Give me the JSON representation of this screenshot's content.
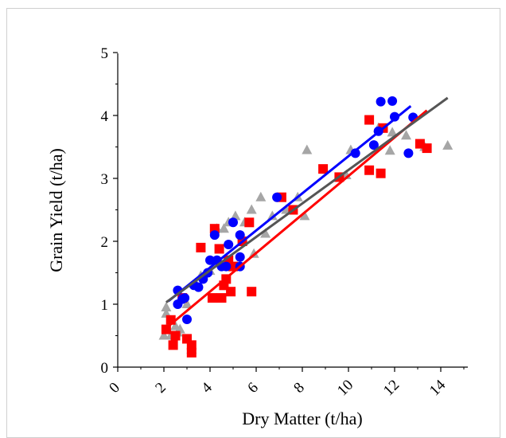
{
  "chart_data": {
    "type": "scatter",
    "title": "",
    "xlabel": "Dry Matter (t/ha)",
    "ylabel": "Grain Yield (t/ha)",
    "xlim": [
      0,
      15
    ],
    "ylim": [
      0,
      5
    ],
    "x_ticks": [
      "0",
      "2",
      "4",
      "6",
      "8",
      "10",
      "12",
      "14"
    ],
    "y_ticks": [
      "0",
      "1",
      "2",
      "3",
      "4",
      "5"
    ],
    "grid": false,
    "legend": "none",
    "series": [
      {
        "color": "#0000ff",
        "marker": "circle",
        "points": [
          [
            2.6,
            1.22
          ],
          [
            2.6,
            1.0
          ],
          [
            2.8,
            1.08
          ],
          [
            2.9,
            1.1
          ],
          [
            3.0,
            0.76
          ],
          [
            3.3,
            1.3
          ],
          [
            3.5,
            1.27
          ],
          [
            3.7,
            1.4
          ],
          [
            3.9,
            1.5
          ],
          [
            4.0,
            1.7
          ],
          [
            4.2,
            2.1
          ],
          [
            4.3,
            1.7
          ],
          [
            4.5,
            1.6
          ],
          [
            4.7,
            1.6
          ],
          [
            4.8,
            1.95
          ],
          [
            5.0,
            2.3
          ],
          [
            5.3,
            2.1
          ],
          [
            5.3,
            1.75
          ],
          [
            5.3,
            1.6
          ],
          [
            6.9,
            2.7
          ],
          [
            10.3,
            3.4
          ],
          [
            11.1,
            3.53
          ],
          [
            11.3,
            3.75
          ],
          [
            11.4,
            4.22
          ],
          [
            11.9,
            4.23
          ],
          [
            12.0,
            3.98
          ],
          [
            12.6,
            3.4
          ],
          [
            12.8,
            3.97
          ]
        ],
        "trend": [
          [
            2.2,
            1.05
          ],
          [
            12.7,
            4.15
          ]
        ]
      },
      {
        "color": "#ff0000",
        "marker": "square",
        "points": [
          [
            2.1,
            0.6
          ],
          [
            2.3,
            0.75
          ],
          [
            2.4,
            0.35
          ],
          [
            2.5,
            0.5
          ],
          [
            2.8,
            1.1
          ],
          [
            3.0,
            0.45
          ],
          [
            3.2,
            0.35
          ],
          [
            3.2,
            0.23
          ],
          [
            3.6,
            1.9
          ],
          [
            4.1,
            1.1
          ],
          [
            4.2,
            2.2
          ],
          [
            4.4,
            1.88
          ],
          [
            4.5,
            1.1
          ],
          [
            4.6,
            1.3
          ],
          [
            4.7,
            1.4
          ],
          [
            4.8,
            1.7
          ],
          [
            4.9,
            1.2
          ],
          [
            5.0,
            1.6
          ],
          [
            5.4,
            2.0
          ],
          [
            5.7,
            2.3
          ],
          [
            5.8,
            1.2
          ],
          [
            7.1,
            2.7
          ],
          [
            7.6,
            2.5
          ],
          [
            8.9,
            3.15
          ],
          [
            9.6,
            3.02
          ],
          [
            10.9,
            3.93
          ],
          [
            10.9,
            3.13
          ],
          [
            11.4,
            3.08
          ],
          [
            11.5,
            3.8
          ],
          [
            13.1,
            3.55
          ],
          [
            13.4,
            3.48
          ]
        ],
        "trend": [
          [
            2.1,
            0.62
          ],
          [
            13.4,
            4.08
          ]
        ]
      },
      {
        "color": "#a6a6a6",
        "marker": "triangle",
        "points": [
          [
            2.0,
            0.5
          ],
          [
            2.1,
            0.95
          ],
          [
            2.1,
            0.85
          ],
          [
            2.3,
            0.5
          ],
          [
            2.5,
            0.65
          ],
          [
            2.6,
            0.55
          ],
          [
            2.7,
            0.6
          ],
          [
            3.0,
            1.0
          ],
          [
            3.2,
            0.28
          ],
          [
            3.4,
            1.32
          ],
          [
            3.6,
            1.45
          ],
          [
            4.0,
            1.53
          ],
          [
            4.3,
            2.2
          ],
          [
            4.6,
            2.2
          ],
          [
            4.8,
            2.3
          ],
          [
            5.1,
            2.4
          ],
          [
            5.5,
            2.3
          ],
          [
            5.8,
            2.5
          ],
          [
            5.9,
            1.8
          ],
          [
            6.2,
            2.7
          ],
          [
            6.4,
            2.12
          ],
          [
            6.7,
            2.4
          ],
          [
            7.3,
            2.5
          ],
          [
            7.8,
            2.7
          ],
          [
            8.1,
            2.4
          ],
          [
            8.2,
            3.45
          ],
          [
            9.9,
            3.05
          ],
          [
            10.1,
            3.45
          ],
          [
            11.3,
            3.8
          ],
          [
            11.8,
            3.44
          ],
          [
            11.9,
            3.73
          ],
          [
            12.5,
            3.68
          ],
          [
            13.3,
            3.5
          ],
          [
            14.3,
            3.52
          ]
        ],
        "trend": [
          [
            2.1,
            1.03
          ],
          [
            14.3,
            4.28
          ]
        ]
      }
    ]
  }
}
